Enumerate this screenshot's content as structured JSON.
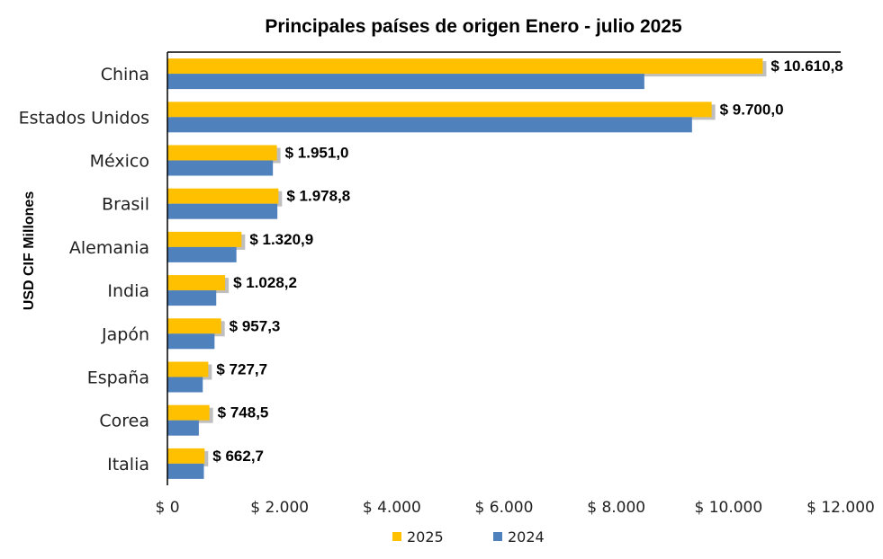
{
  "chart_data": {
    "type": "bar",
    "orientation": "horizontal",
    "title": "Principales países de origen Enero - julio 2025",
    "ylabel": "USD CIF Millones",
    "xlabel": "",
    "categories": [
      "China",
      "Estados Unidos",
      "México",
      "Brasil",
      "Alemania",
      "India",
      "Japón",
      "España",
      "Corea",
      "Italia"
    ],
    "series": [
      {
        "name": "2025",
        "color": "#FFC000",
        "values": [
          10610.8,
          9700.0,
          1951.0,
          1978.8,
          1320.9,
          1028.2,
          957.3,
          727.7,
          748.5,
          662.7
        ],
        "labels": [
          "$ 10.610,8",
          "$ 9.700,0",
          "$ 1.951,0",
          "$ 1.978,8",
          "$ 1.320,9",
          "$ 1.028,2",
          "$ 957,3",
          "$ 727,7",
          "$ 748,5",
          "$ 662,7"
        ]
      },
      {
        "name": "2024",
        "color": "#4F81BD",
        "values": [
          8500,
          9350,
          1880,
          1960,
          1230,
          870,
          840,
          630,
          560,
          650
        ]
      }
    ],
    "xlim": [
      0,
      12000
    ],
    "xticks": [
      0,
      2000,
      4000,
      6000,
      8000,
      10000,
      12000
    ],
    "xtick_labels": [
      "$ 0",
      "$ 2.000",
      "$ 4.000",
      "$ 6.000",
      "$ 8.000",
      "$ 10.000",
      "$ 12.000"
    ],
    "grid": false,
    "legend": "bottom"
  }
}
